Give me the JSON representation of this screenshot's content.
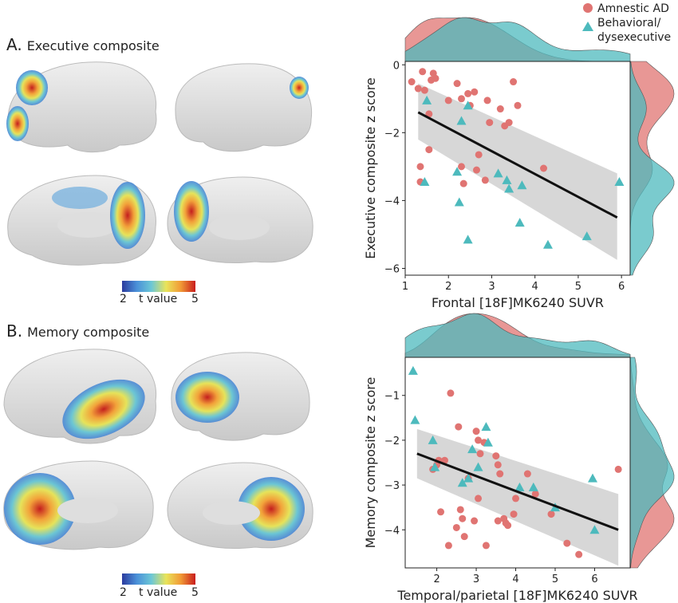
{
  "panels": {
    "a": {
      "letter": "A.",
      "title": "Executive composite"
    },
    "b": {
      "letter": "B.",
      "title": "Memory composite"
    }
  },
  "colorbar": {
    "min": "2",
    "label": "t value",
    "max": "5"
  },
  "legend": {
    "items": [
      {
        "name": "Amnestic AD",
        "marker": "circle",
        "color": "#e07472"
      },
      {
        "name_line1": "Behavioral/",
        "name_line2": "dysexecutive",
        "marker": "triangle",
        "color": "#4dbabd"
      }
    ],
    "placement": "top-right"
  },
  "chart_data": [
    {
      "type": "scatter",
      "xlabel": "Frontal [18F]MK6240 SUVR",
      "ylabel": "Executive composite z score",
      "xlim": [
        1,
        6.2
      ],
      "ylim": [
        -6.2,
        0.1
      ],
      "xticks": [
        "1",
        "2",
        "3",
        "4",
        "5",
        "6"
      ],
      "yticks": [
        "0",
        "−2",
        "−4",
        "−6"
      ],
      "xtick_values": [
        1,
        2,
        3,
        4,
        5,
        6
      ],
      "ytick_values": [
        0,
        -2,
        -4,
        -6
      ],
      "grid": false,
      "regression": {
        "x": [
          1.3,
          5.9
        ],
        "y": [
          -1.4,
          -4.5
        ],
        "ci_upper": [
          -0.55,
          -3.2
        ],
        "ci_lower": [
          -2.2,
          -5.75
        ]
      },
      "series": [
        {
          "name": "Amnestic AD",
          "color": "#e07472",
          "marker": "circle",
          "points": [
            [
              1.15,
              -0.5
            ],
            [
              1.3,
              -0.7
            ],
            [
              1.4,
              -0.2
            ],
            [
              1.45,
              -0.75
            ],
            [
              1.55,
              -1.45
            ],
            [
              1.6,
              -0.45
            ],
            [
              1.65,
              -0.25
            ],
            [
              1.7,
              -0.4
            ],
            [
              2.0,
              -1.05
            ],
            [
              2.2,
              -0.55
            ],
            [
              2.3,
              -1.0
            ],
            [
              2.45,
              -0.85
            ],
            [
              2.5,
              -1.2
            ],
            [
              2.6,
              -0.8
            ],
            [
              2.9,
              -1.05
            ],
            [
              2.95,
              -1.7
            ],
            [
              3.2,
              -1.3
            ],
            [
              3.3,
              -1.8
            ],
            [
              3.4,
              -1.7
            ],
            [
              3.5,
              -0.5
            ],
            [
              3.6,
              -1.2
            ],
            [
              1.55,
              -2.5
            ],
            [
              1.35,
              -3.0
            ],
            [
              1.35,
              -3.45
            ],
            [
              2.3,
              -3.0
            ],
            [
              2.35,
              -3.5
            ],
            [
              2.65,
              -3.1
            ],
            [
              2.7,
              -2.65
            ],
            [
              2.85,
              -3.4
            ],
            [
              4.2,
              -3.05
            ]
          ]
        },
        {
          "name": "Behavioral/dysexecutive",
          "color": "#4dbabd",
          "marker": "triangle",
          "points": [
            [
              1.5,
              -1.05
            ],
            [
              1.45,
              -3.45
            ],
            [
              2.3,
              -1.65
            ],
            [
              2.45,
              -1.2
            ],
            [
              2.2,
              -3.15
            ],
            [
              2.25,
              -4.05
            ],
            [
              3.15,
              -3.2
            ],
            [
              3.35,
              -3.4
            ],
            [
              3.4,
              -3.65
            ],
            [
              3.7,
              -3.55
            ],
            [
              3.65,
              -4.65
            ],
            [
              2.45,
              -5.15
            ],
            [
              4.3,
              -5.3
            ],
            [
              5.2,
              -5.05
            ],
            [
              5.95,
              -3.45
            ]
          ]
        }
      ]
    },
    {
      "type": "scatter",
      "xlabel": "Temporal/parietal [18F]MK6240 SUVR",
      "ylabel": "Memory composite z score",
      "xlim": [
        1.2,
        6.9
      ],
      "ylim": [
        -4.85,
        -0.15
      ],
      "xticks": [
        "2",
        "3",
        "4",
        "5",
        "6"
      ],
      "yticks": [
        "−1",
        "−2",
        "−3",
        "−4"
      ],
      "xtick_values": [
        2,
        3,
        4,
        5,
        6
      ],
      "ytick_values": [
        -1,
        -2,
        -3,
        -4
      ],
      "grid": false,
      "regression": {
        "x": [
          1.5,
          6.6
        ],
        "y": [
          -2.3,
          -4.0
        ],
        "ci_upper": [
          -1.75,
          -3.2
        ],
        "ci_lower": [
          -2.85,
          -4.8
        ]
      },
      "series": [
        {
          "name": "Amnestic AD",
          "color": "#e07472",
          "marker": "circle",
          "points": [
            [
              2.0,
              -2.55
            ],
            [
              2.05,
              -2.45
            ],
            [
              2.1,
              -3.6
            ],
            [
              1.9,
              -2.65
            ],
            [
              2.2,
              -2.45
            ],
            [
              2.35,
              -0.95
            ],
            [
              2.55,
              -1.7
            ],
            [
              2.6,
              -3.55
            ],
            [
              2.65,
              -3.75
            ],
            [
              2.5,
              -3.95
            ],
            [
              2.7,
              -4.15
            ],
            [
              2.8,
              -2.85
            ],
            [
              2.95,
              -3.8
            ],
            [
              3.0,
              -1.8
            ],
            [
              3.05,
              -2.0
            ],
            [
              3.05,
              -3.3
            ],
            [
              3.1,
              -2.3
            ],
            [
              3.2,
              -2.05
            ],
            [
              3.25,
              -4.35
            ],
            [
              3.5,
              -2.35
            ],
            [
              3.55,
              -2.55
            ],
            [
              3.6,
              -2.75
            ],
            [
              3.55,
              -3.8
            ],
            [
              3.7,
              -3.75
            ],
            [
              3.75,
              -3.85
            ],
            [
              3.8,
              -3.9
            ],
            [
              3.95,
              -3.65
            ],
            [
              4.0,
              -3.3
            ],
            [
              4.3,
              -2.75
            ],
            [
              4.5,
              -3.2
            ],
            [
              4.9,
              -3.65
            ],
            [
              5.3,
              -4.3
            ],
            [
              5.6,
              -4.55
            ],
            [
              6.6,
              -2.65
            ],
            [
              2.3,
              -4.35
            ]
          ]
        },
        {
          "name": "Behavioral/dysexecutive",
          "color": "#4dbabd",
          "marker": "triangle",
          "points": [
            [
              1.4,
              -0.45
            ],
            [
              1.45,
              -1.55
            ],
            [
              1.9,
              -2.0
            ],
            [
              1.95,
              -2.6
            ],
            [
              2.65,
              -2.95
            ],
            [
              2.8,
              -2.85
            ],
            [
              2.9,
              -2.2
            ],
            [
              3.05,
              -2.6
            ],
            [
              3.25,
              -1.7
            ],
            [
              3.3,
              -2.05
            ],
            [
              4.1,
              -3.05
            ],
            [
              4.45,
              -3.05
            ],
            [
              5.0,
              -3.5
            ],
            [
              5.95,
              -2.85
            ],
            [
              6.0,
              -4.0
            ]
          ]
        }
      ]
    }
  ]
}
